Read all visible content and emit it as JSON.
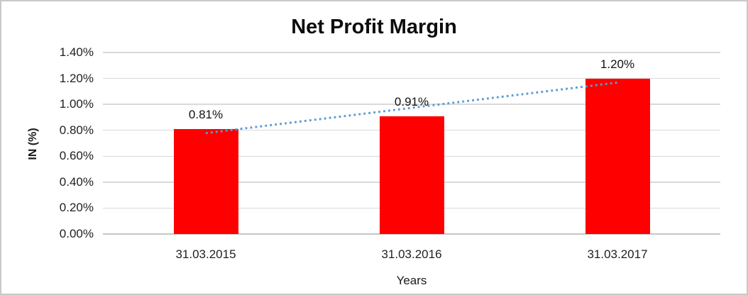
{
  "window": {
    "background": "#ffffff",
    "border_color": "#c9c9c9"
  },
  "chart_data": {
    "type": "bar",
    "title": "Net Profit Margin",
    "xlabel": "Years",
    "ylabel": "IN (%)",
    "categories": [
      "31.03.2015",
      "31.03.2016",
      "31.03.2017"
    ],
    "values": [
      0.81,
      0.91,
      1.2
    ],
    "data_labels": [
      "0.81%",
      "0.91%",
      "1.20%"
    ],
    "bar_color": "#ff0000",
    "ylim": [
      0,
      1.4
    ],
    "yticks": [
      0,
      0.2,
      0.4,
      0.6,
      0.8,
      1.0,
      1.2,
      1.4
    ],
    "ytick_labels": [
      "0.00%",
      "0.20%",
      "0.40%",
      "0.60%",
      "0.80%",
      "1.00%",
      "1.20%",
      "1.40%"
    ],
    "grid": true,
    "gridline_color": "#d9d9d9",
    "legend": "none",
    "trendline": {
      "type": "linear",
      "style": "dotted",
      "color": "#5b9bd5",
      "start_value": 0.778,
      "end_value": 1.168
    }
  }
}
